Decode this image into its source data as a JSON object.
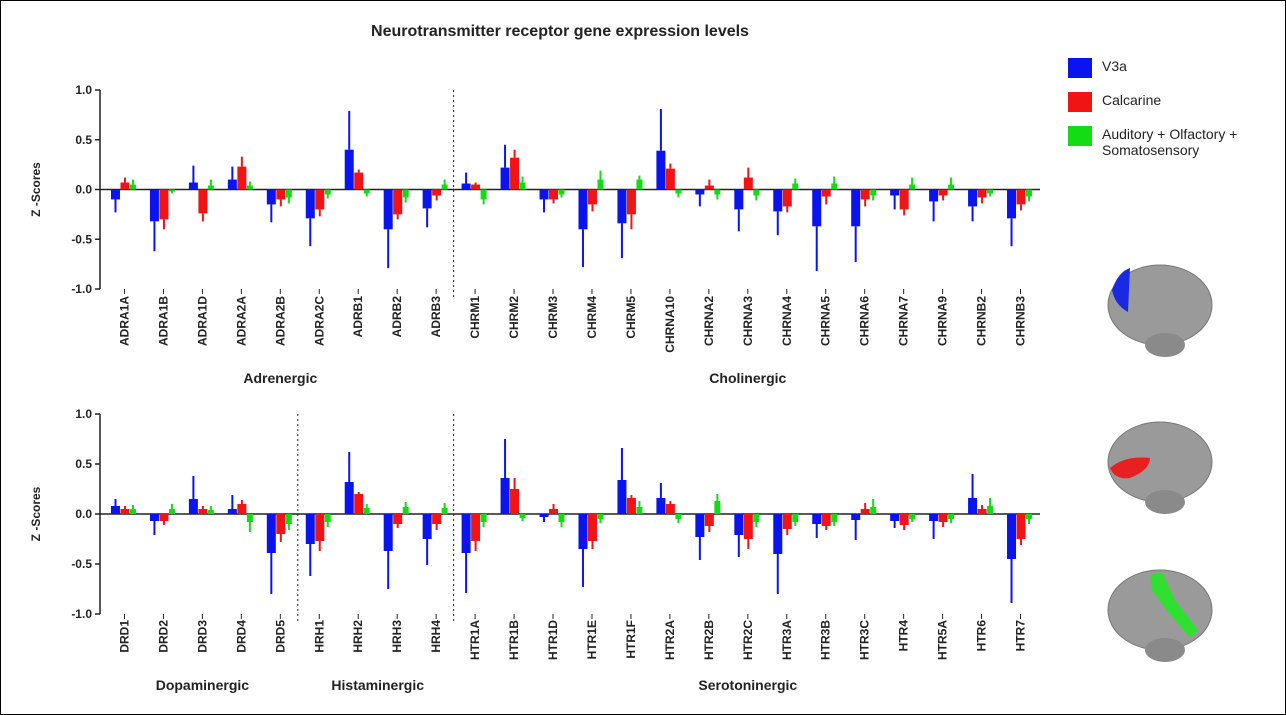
{
  "legend": [
    {
      "name": "V3a",
      "color": "#0a14f0"
    },
    {
      "name": "Calcarine",
      "color": "#f01414"
    },
    {
      "name": "Auditory + Olfactory + Somatosensory",
      "color": "#14dc14"
    }
  ],
  "chart_data": [
    {
      "type": "bar",
      "title": "Neurotransmitter receptor gene expression levels",
      "ylabel": "Z -Scores",
      "ylim": [
        -1,
        1
      ],
      "yticks": [
        {
          "value": -1,
          "label": "-1.0"
        },
        -0.5,
        {
          "value": 0,
          "label": "0.0"
        },
        0.5,
        {
          "value": 1,
          "label": "1.0"
        }
      ],
      "group_labels": [
        "Adrenergic",
        "Cholinergic"
      ],
      "categories": [
        [
          "ADRA1A",
          "ADRA1B",
          "ADRA1D",
          "ADRA2A",
          "ADRA2B",
          "ADRA2C",
          "ADRB1",
          "ADRB2",
          "ADRB3"
        ],
        [
          "CHRM1",
          "CHRM2",
          "CHRM3",
          "CHRM4",
          "CHRM5",
          "CHRNA10",
          "CHRNA2",
          "CHRNA3",
          "CHRNA4",
          "CHRNA5",
          "CHRNA6",
          "CHRNA7",
          "CHRNA9",
          "CHRNB2",
          "CHRNB3"
        ]
      ],
      "series": [
        {
          "values": [
            [
              -0.1,
              -0.32,
              0.07,
              0.1,
              -0.15,
              -0.29,
              0.4,
              -0.4,
              -0.19
            ],
            [
              0.06,
              0.22,
              -0.1,
              -0.4,
              -0.34,
              0.39,
              -0.05,
              -0.2,
              -0.22,
              -0.37,
              -0.37,
              -0.06,
              -0.12,
              -0.17,
              -0.29
            ]
          ],
          "errors": [
            [
              0.13,
              0.3,
              0.17,
              0.13,
              0.18,
              0.28,
              0.39,
              0.39,
              0.19
            ],
            [
              0.11,
              0.23,
              0.13,
              0.38,
              0.35,
              0.42,
              0.12,
              0.22,
              0.24,
              0.45,
              0.36,
              0.14,
              0.2,
              0.15,
              0.28
            ]
          ]
        },
        {
          "values": [
            [
              0.07,
              -0.3,
              -0.24,
              0.23,
              -0.1,
              -0.2,
              0.17,
              -0.25,
              -0.06
            ],
            [
              0.05,
              0.32,
              -0.1,
              -0.15,
              -0.25,
              0.21,
              0.04,
              0.12,
              -0.17,
              -0.07,
              -0.1,
              -0.2,
              -0.06,
              -0.08,
              -0.15
            ]
          ],
          "errors": [
            [
              0.05,
              0.1,
              0.08,
              0.1,
              0.07,
              0.07,
              0.03,
              0.05,
              0.05
            ],
            [
              0.02,
              0.08,
              0.04,
              0.07,
              0.15,
              0.05,
              0.06,
              0.1,
              0.06,
              0.08,
              0.07,
              0.06,
              0.05,
              0.06,
              0.06
            ]
          ]
        },
        {
          "values": [
            [
              0.05,
              -0.02,
              0.04,
              0.04,
              -0.08,
              -0.05,
              -0.04,
              -0.08,
              0.05
            ],
            [
              -0.1,
              0.07,
              -0.05,
              0.1,
              0.1,
              -0.04,
              -0.05,
              -0.06,
              0.06,
              0.06,
              -0.06,
              0.05,
              0.05,
              -0.04,
              -0.07
            ]
          ],
          "errors": [
            [
              0.05,
              0.02,
              0.06,
              0.04,
              0.06,
              0.04,
              0.03,
              0.05,
              0.05
            ],
            [
              0.05,
              0.06,
              0.03,
              0.09,
              0.04,
              0.04,
              0.05,
              0.05,
              0.05,
              0.07,
              0.05,
              0.07,
              0.07,
              0.03,
              0.05
            ]
          ]
        }
      ]
    },
    {
      "type": "bar",
      "ylabel": "Z -Scores",
      "ylim": [
        -1,
        1
      ],
      "yticks": [
        {
          "value": -1,
          "label": "-1.0"
        },
        -0.5,
        {
          "value": 0,
          "label": "0.0"
        },
        0.5,
        {
          "value": 1,
          "label": "1.0"
        }
      ],
      "group_labels": [
        "Dopaminergic",
        "Histaminergic",
        "Serotoninergic"
      ],
      "categories": [
        [
          "DRD1",
          "DRD2",
          "DRD3",
          "DRD4",
          "DRD5"
        ],
        [
          "HRH1",
          "HRH2",
          "HRH3",
          "HRH4"
        ],
        [
          "HTR1A",
          "HTR1B",
          "HTR1D",
          "HTR1E",
          "HTR1F",
          "HTR2A",
          "HTR2B",
          "HTR2C",
          "HTR3A",
          "HTR3B",
          "HTR3C",
          "HTR4",
          "HTR5A",
          "HTR6",
          "HTR7"
        ]
      ],
      "series": [
        {
          "values": [
            [
              0.08,
              -0.07,
              0.15,
              0.05,
              -0.39
            ],
            [
              -0.3,
              0.32,
              -0.37,
              -0.25
            ],
            [
              -0.39,
              0.36,
              -0.03,
              -0.35,
              0.34,
              0.16,
              -0.23,
              -0.21,
              -0.4,
              -0.1,
              -0.06,
              -0.07,
              -0.07,
              0.16,
              -0.45
            ]
          ],
          "errors": [
            [
              0.07,
              0.14,
              0.23,
              0.14,
              0.41
            ],
            [
              0.32,
              0.3,
              0.38,
              0.26
            ],
            [
              0.4,
              0.39,
              0.05,
              0.38,
              0.32,
              0.15,
              0.23,
              0.22,
              0.4,
              0.14,
              0.2,
              0.07,
              0.18,
              0.24,
              0.44
            ]
          ]
        },
        {
          "values": [
            [
              0.05,
              -0.07,
              0.05,
              0.1,
              -0.2
            ],
            [
              -0.27,
              0.2,
              -0.1,
              -0.1
            ],
            [
              -0.27,
              0.25,
              0.05,
              -0.27,
              0.16,
              0.1,
              -0.12,
              -0.25,
              -0.15,
              -0.12,
              0.05,
              -0.11,
              -0.08,
              0.05,
              -0.25
            ]
          ],
          "errors": [
            [
              0.03,
              0.04,
              0.03,
              0.04,
              0.08
            ],
            [
              0.1,
              0.02,
              0.04,
              0.06
            ],
            [
              0.1,
              0.11,
              0.05,
              0.08,
              0.03,
              0.03,
              0.06,
              0.1,
              0.06,
              0.04,
              0.06,
              0.05,
              0.05,
              0.04,
              0.06
            ]
          ]
        },
        {
          "values": [
            [
              0.05,
              0.05,
              0.04,
              -0.08,
              -0.1
            ],
            [
              -0.08,
              0.06,
              0.07,
              0.06
            ],
            [
              -0.08,
              -0.04,
              -0.08,
              -0.05,
              0.07,
              -0.05,
              0.13,
              -0.08,
              -0.08,
              -0.08,
              0.07,
              -0.05,
              -0.05,
              0.08,
              -0.05
            ]
          ],
          "errors": [
            [
              0.04,
              0.05,
              0.04,
              0.1,
              0.06
            ],
            [
              0.05,
              0.04,
              0.05,
              0.05
            ],
            [
              0.05,
              0.03,
              0.05,
              0.04,
              0.06,
              0.04,
              0.07,
              0.05,
              0.04,
              0.04,
              0.08,
              0.03,
              0.04,
              0.08,
              0.05
            ]
          ]
        }
      ]
    }
  ]
}
